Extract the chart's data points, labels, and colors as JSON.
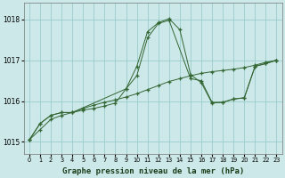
{
  "title": "Graphe pression niveau de la mer (hPa)",
  "bg_color": "#cce8e8",
  "grid_color": "#99cccc",
  "line_color": "#336633",
  "xlim": [
    -0.5,
    23.5
  ],
  "ylim": [
    1014.7,
    1018.4
  ],
  "yticks": [
    1015,
    1016,
    1017,
    1018
  ],
  "xticks": [
    0,
    1,
    2,
    3,
    4,
    5,
    6,
    7,
    8,
    9,
    10,
    11,
    12,
    13,
    14,
    15,
    16,
    17,
    18,
    19,
    20,
    21,
    22,
    23
  ],
  "series1_x": [
    0,
    1,
    2,
    3,
    4,
    5,
    6,
    7,
    8,
    9,
    10,
    11,
    12,
    13,
    14,
    15,
    16,
    17,
    18,
    19,
    20,
    21,
    22,
    23
  ],
  "series1_y": [
    1015.05,
    1015.45,
    1015.65,
    1015.72,
    1015.72,
    1015.78,
    1015.82,
    1015.88,
    1015.95,
    1016.3,
    1016.85,
    1017.7,
    1017.92,
    1018.02,
    1017.75,
    1016.65,
    1016.45,
    1015.95,
    1015.97,
    1016.05,
    1016.08,
    1016.85,
    1016.92,
    1017.0
  ],
  "series2_x": [
    0,
    1,
    2,
    3,
    4,
    5,
    6,
    7,
    8,
    9,
    10,
    11,
    12,
    13,
    14,
    15,
    16,
    17,
    18,
    19,
    20,
    21,
    22,
    23
  ],
  "series2_y": [
    1015.05,
    1015.3,
    1015.55,
    1015.65,
    1015.72,
    1015.82,
    1015.9,
    1015.97,
    1016.03,
    1016.1,
    1016.18,
    1016.28,
    1016.38,
    1016.48,
    1016.55,
    1016.62,
    1016.68,
    1016.72,
    1016.75,
    1016.78,
    1016.82,
    1016.88,
    1016.95,
    1017.0
  ],
  "series3_x": [
    0,
    1,
    2,
    3,
    4,
    9,
    10,
    11,
    12,
    13,
    15,
    16,
    17,
    18,
    19,
    20,
    21,
    22,
    23
  ],
  "series3_y": [
    1015.05,
    1015.45,
    1015.65,
    1015.72,
    1015.72,
    1016.3,
    1016.62,
    1017.55,
    1017.9,
    1017.98,
    1016.55,
    1016.5,
    1015.97,
    1015.97,
    1016.05,
    1016.08,
    1016.85,
    1016.92,
    1017.0
  ],
  "ylabel_fontsize": 5.5,
  "xlabel_fontsize": 6.5,
  "tick_fontsize": 5.0
}
